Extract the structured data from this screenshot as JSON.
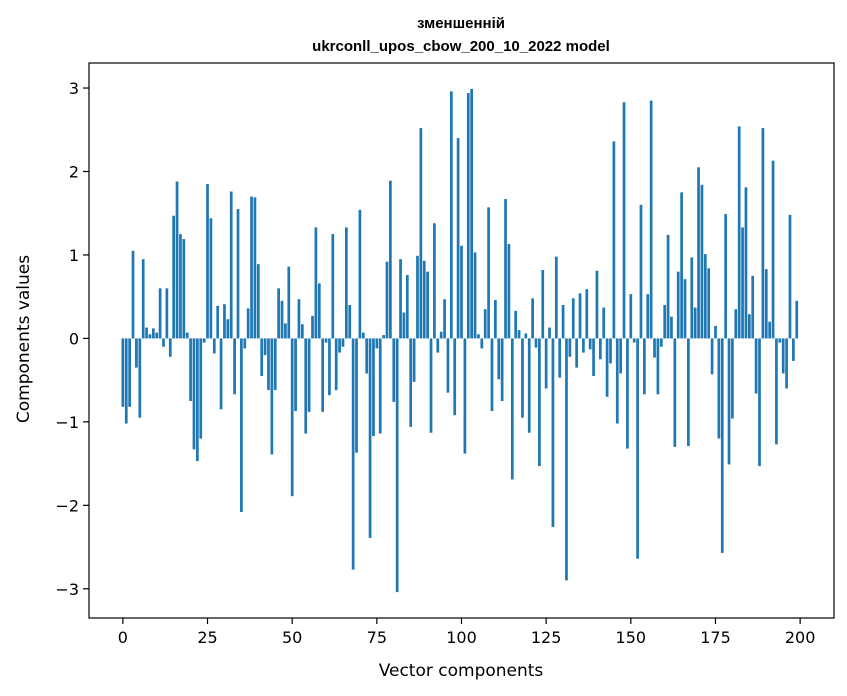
{
  "chart_data": {
    "type": "bar",
    "title_line1": "зменшенній",
    "title_line2": "ukrconll_upos_cbow_200_10_2022 model",
    "xlabel": "Vector components",
    "ylabel": "Components values",
    "xlim": [
      -10,
      210
    ],
    "ylim": [
      -3.35,
      3.3
    ],
    "xticks": [
      0,
      25,
      50,
      75,
      100,
      125,
      150,
      175,
      200
    ],
    "xtick_labels": [
      "0",
      "25",
      "50",
      "75",
      "100",
      "125",
      "150",
      "175",
      "200"
    ],
    "yticks": [
      -3,
      -2,
      -1,
      0,
      1,
      2,
      3
    ],
    "ytick_labels": [
      "−3",
      "−2",
      "−1",
      "0",
      "1",
      "2",
      "3"
    ],
    "grid": false,
    "bar_color": "#1f77b4",
    "values": [
      -0.82,
      -1.02,
      -0.82,
      1.05,
      -0.35,
      -0.95,
      0.95,
      0.13,
      0.05,
      0.12,
      0.07,
      0.6,
      -0.1,
      0.6,
      -0.22,
      1.47,
      1.88,
      1.25,
      1.19,
      0.07,
      -0.75,
      -1.33,
      -1.47,
      -1.2,
      -0.05,
      1.85,
      1.44,
      -0.18,
      0.39,
      -0.85,
      0.41,
      0.23,
      1.76,
      -0.67,
      1.55,
      -2.08,
      -0.12,
      0.36,
      1.7,
      1.69,
      0.89,
      -0.45,
      -0.2,
      -0.62,
      -1.39,
      -0.62,
      0.6,
      0.45,
      0.18,
      0.86,
      -1.89,
      -0.87,
      0.47,
      0.17,
      -1.14,
      -0.88,
      0.27,
      1.33,
      0.66,
      -0.88,
      -0.05,
      -0.68,
      1.25,
      -0.62,
      -0.17,
      -0.1,
      1.33,
      0.4,
      -2.77,
      -1.37,
      1.54,
      0.07,
      -0.42,
      -2.39,
      -1.17,
      -0.12,
      -1.14,
      0.04,
      0.92,
      1.89,
      -0.76,
      -3.04,
      0.95,
      0.31,
      0.76,
      -1.06,
      -0.52,
      0.99,
      2.52,
      0.93,
      0.8,
      -1.13,
      1.38,
      -0.17,
      0.08,
      0.47,
      -0.65,
      2.96,
      -0.92,
      2.4,
      1.11,
      -1.38,
      2.94,
      2.99,
      1.03,
      0.05,
      -0.12,
      0.35,
      1.57,
      -0.87,
      0.46,
      -0.49,
      -0.75,
      1.67,
      1.13,
      -1.69,
      0.33,
      0.1,
      -0.95,
      0.06,
      -1.13,
      0.48,
      -0.11,
      -1.53,
      0.82,
      -0.6,
      0.13,
      -2.26,
      0.98,
      -0.47,
      0.4,
      -2.9,
      -0.22,
      0.48,
      -0.35,
      0.54,
      -0.17,
      0.59,
      -0.13,
      -0.45,
      0.81,
      -0.25,
      0.37,
      -0.7,
      -0.3,
      2.36,
      -1.02,
      -0.42,
      2.83,
      -1.32,
      0.53,
      -0.05,
      -2.64,
      1.6,
      -0.67,
      0.53,
      2.85,
      -0.23,
      -0.67,
      -0.1,
      0.4,
      1.24,
      0.26,
      -1.3,
      0.8,
      1.75,
      0.71,
      -1.29,
      0.97,
      0.37,
      2.05,
      1.84,
      1.01,
      0.84,
      -0.43,
      0.15,
      -1.2,
      -2.57,
      1.49,
      -1.51,
      -0.96,
      0.35,
      2.54,
      1.33,
      1.81,
      0.29,
      0.75,
      -0.66,
      -1.53,
      2.52,
      0.83,
      0.2,
      2.13,
      -1.27,
      -0.05,
      -0.42,
      -0.6,
      1.48,
      -0.27,
      0.45
    ]
  }
}
